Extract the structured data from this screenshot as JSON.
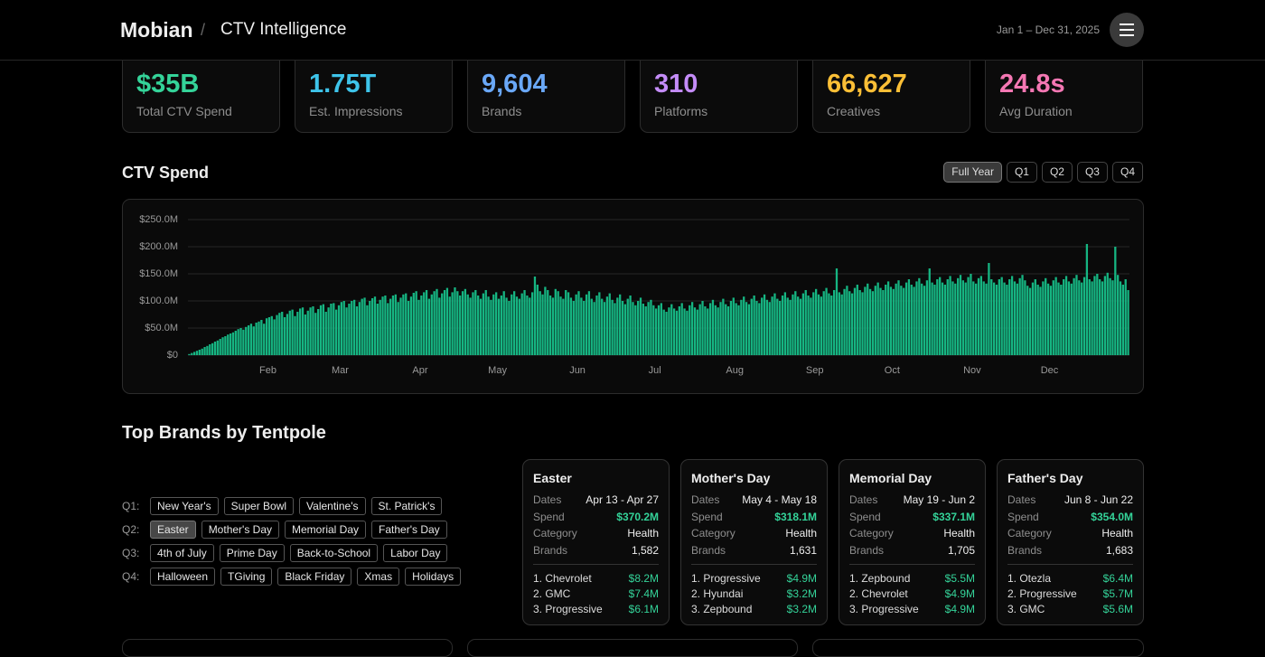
{
  "header": {
    "brand": "Mobian",
    "separator": "/",
    "section": "CTV Intelligence",
    "date_range": "Jan 1 – Dec 31, 2025"
  },
  "kpis": [
    {
      "value": "$35B",
      "label": "Total CTV Spend",
      "color": "#34d399"
    },
    {
      "value": "1.75T",
      "label": "Est. Impressions",
      "color": "#3ec4ea"
    },
    {
      "value": "9,604",
      "label": "Brands",
      "color": "#6aa8f8"
    },
    {
      "value": "310",
      "label": "Platforms",
      "color": "#c48cf8"
    },
    {
      "value": "66,627",
      "label": "Creatives",
      "color": "#fbbf36"
    },
    {
      "value": "24.8s",
      "label": "Avg Duration",
      "color": "#f477b3"
    }
  ],
  "range_buttons": {
    "items": [
      "Full Year",
      "Q1",
      "Q2",
      "Q3",
      "Q4"
    ],
    "active": 0
  },
  "chart_data": {
    "type": "bar",
    "title": "CTV Spend",
    "color": "#16b582",
    "grid": true,
    "ylim": [
      0,
      250
    ],
    "yticks": [
      {
        "value": 0,
        "label": "$0"
      },
      {
        "value": 50,
        "label": "$50.0M"
      },
      {
        "value": 100,
        "label": "$100.0M"
      },
      {
        "value": 150,
        "label": "$150.0M"
      },
      {
        "value": 200,
        "label": "$200.0M"
      },
      {
        "value": 250,
        "label": "$250.0M"
      }
    ],
    "categories": [
      null,
      null,
      null,
      null,
      null,
      null,
      null,
      null,
      null,
      null,
      null,
      null,
      null,
      null,
      null,
      null,
      null,
      null,
      null,
      null,
      null,
      null,
      null,
      null,
      null,
      null,
      null,
      null,
      null,
      null,
      null,
      "Feb",
      null,
      null,
      null,
      null,
      null,
      null,
      null,
      null,
      null,
      null,
      null,
      null,
      null,
      null,
      null,
      null,
      null,
      null,
      null,
      null,
      null,
      null,
      null,
      null,
      null,
      null,
      null,
      "Mar",
      null,
      null,
      null,
      null,
      null,
      null,
      null,
      null,
      null,
      null,
      null,
      null,
      null,
      null,
      null,
      null,
      null,
      null,
      null,
      null,
      null,
      null,
      null,
      null,
      null,
      null,
      null,
      null,
      null,
      null,
      "Apr",
      null,
      null,
      null,
      null,
      null,
      null,
      null,
      null,
      null,
      null,
      null,
      null,
      null,
      null,
      null,
      null,
      null,
      null,
      null,
      null,
      null,
      null,
      null,
      null,
      null,
      null,
      null,
      null,
      null,
      "May",
      null,
      null,
      null,
      null,
      null,
      null,
      null,
      null,
      null,
      null,
      null,
      null,
      null,
      null,
      null,
      null,
      null,
      null,
      null,
      null,
      null,
      null,
      null,
      null,
      null,
      null,
      null,
      null,
      null,
      null,
      "Jun",
      null,
      null,
      null,
      null,
      null,
      null,
      null,
      null,
      null,
      null,
      null,
      null,
      null,
      null,
      null,
      null,
      null,
      null,
      null,
      null,
      null,
      null,
      null,
      null,
      null,
      null,
      null,
      null,
      null,
      "Jul",
      null,
      null,
      null,
      null,
      null,
      null,
      null,
      null,
      null,
      null,
      null,
      null,
      null,
      null,
      null,
      null,
      null,
      null,
      null,
      null,
      null,
      null,
      null,
      null,
      null,
      null,
      null,
      null,
      null,
      null,
      "Aug",
      null,
      null,
      null,
      null,
      null,
      null,
      null,
      null,
      null,
      null,
      null,
      null,
      null,
      null,
      null,
      null,
      null,
      null,
      null,
      null,
      null,
      null,
      null,
      null,
      null,
      null,
      null,
      null,
      null,
      null,
      "Sep",
      null,
      null,
      null,
      null,
      null,
      null,
      null,
      null,
      null,
      null,
      null,
      null,
      null,
      null,
      null,
      null,
      null,
      null,
      null,
      null,
      null,
      null,
      null,
      null,
      null,
      null,
      null,
      null,
      null,
      "Oct",
      null,
      null,
      null,
      null,
      null,
      null,
      null,
      null,
      null,
      null,
      null,
      null,
      null,
      null,
      null,
      null,
      null,
      null,
      null,
      null,
      null,
      null,
      null,
      null,
      null,
      null,
      null,
      null,
      null,
      null,
      "Nov",
      null,
      null,
      null,
      null,
      null,
      null,
      null,
      null,
      null,
      null,
      null,
      null,
      null,
      null,
      null,
      null,
      null,
      null,
      null,
      null,
      null,
      null,
      null,
      null,
      null,
      null,
      null,
      null,
      null,
      "Dec",
      null,
      null,
      null,
      null,
      null,
      null,
      null,
      null,
      null,
      null,
      null,
      null,
      null,
      null,
      null,
      null,
      null,
      null,
      null,
      null,
      null,
      null,
      null,
      null,
      null,
      null,
      null,
      null,
      null,
      null
    ],
    "values": [
      2,
      4,
      6,
      8,
      10,
      12,
      15,
      17,
      20,
      22,
      25,
      27,
      30,
      33,
      35,
      38,
      40,
      42,
      45,
      48,
      50,
      47,
      52,
      55,
      58,
      53,
      60,
      62,
      65,
      58,
      68,
      70,
      72,
      66,
      74,
      78,
      80,
      70,
      76,
      82,
      84,
      72,
      80,
      86,
      88,
      75,
      82,
      88,
      90,
      78,
      85,
      92,
      94,
      80,
      88,
      95,
      96,
      84,
      92,
      98,
      100,
      88,
      95,
      100,
      102,
      90,
      98,
      104,
      106,
      92,
      100,
      105,
      108,
      95,
      102,
      108,
      110,
      96,
      104,
      110,
      112,
      98,
      106,
      112,
      114,
      100,
      108,
      115,
      118,
      102,
      110,
      116,
      120,
      104,
      112,
      118,
      122,
      106,
      114,
      120,
      124,
      108,
      116,
      125,
      118,
      110,
      118,
      122,
      112,
      106,
      116,
      120,
      110,
      104,
      114,
      120,
      108,
      102,
      112,
      116,
      104,
      110,
      118,
      106,
      100,
      112,
      118,
      108,
      104,
      114,
      120,
      110,
      106,
      116,
      145,
      130,
      118,
      112,
      126,
      120,
      110,
      106,
      122,
      118,
      108,
      104,
      120,
      116,
      106,
      100,
      112,
      118,
      106,
      100,
      112,
      118,
      104,
      98,
      110,
      116,
      104,
      98,
      108,
      114,
      102,
      96,
      106,
      112,
      100,
      94,
      104,
      110,
      98,
      92,
      100,
      106,
      95,
      90,
      98,
      102,
      92,
      86,
      92,
      96,
      84,
      80,
      88,
      94,
      86,
      82,
      90,
      96,
      86,
      82,
      92,
      98,
      88,
      84,
      94,
      100,
      90,
      86,
      96,
      102,
      92,
      88,
      98,
      104,
      94,
      90,
      100,
      106,
      96,
      92,
      102,
      108,
      98,
      94,
      104,
      110,
      100,
      96,
      106,
      112,
      102,
      98,
      108,
      114,
      104,
      100,
      110,
      116,
      106,
      102,
      112,
      118,
      108,
      104,
      114,
      120,
      110,
      106,
      116,
      122,
      112,
      108,
      118,
      124,
      114,
      110,
      120,
      160,
      116,
      112,
      122,
      128,
      118,
      114,
      124,
      130,
      120,
      116,
      126,
      132,
      122,
      118,
      128,
      134,
      124,
      120,
      130,
      136,
      126,
      122,
      132,
      138,
      128,
      124,
      134,
      140,
      130,
      126,
      136,
      142,
      132,
      128,
      138,
      160,
      134,
      130,
      140,
      144,
      134,
      130,
      140,
      146,
      136,
      132,
      142,
      148,
      138,
      134,
      144,
      150,
      136,
      132,
      142,
      146,
      136,
      132,
      170,
      140,
      134,
      130,
      140,
      144,
      134,
      130,
      140,
      146,
      136,
      132,
      142,
      148,
      138,
      128,
      124,
      134,
      140,
      130,
      126,
      136,
      142,
      132,
      128,
      138,
      144,
      134,
      130,
      140,
      146,
      136,
      132,
      142,
      148,
      138,
      134,
      144,
      205,
      140,
      136,
      146,
      150,
      140,
      136,
      146,
      152,
      142,
      138,
      200,
      148,
      136,
      130,
      140,
      120
    ]
  },
  "tentpole": {
    "title": "Top Brands by Tentpole",
    "active_quarter": 1,
    "active_item": 0,
    "quarters": [
      {
        "label": "Q1:",
        "items": [
          "New Year's",
          "Super Bowl",
          "Valentine's",
          "St. Patrick's"
        ]
      },
      {
        "label": "Q2:",
        "items": [
          "Easter",
          "Mother's Day",
          "Memorial Day",
          "Father's Day"
        ]
      },
      {
        "label": "Q3:",
        "items": [
          "4th of July",
          "Prime Day",
          "Back-to-School",
          "Labor Day"
        ]
      },
      {
        "label": "Q4:",
        "items": [
          "Halloween",
          "TGiving",
          "Black Friday",
          "Xmas",
          "Holidays"
        ]
      }
    ]
  },
  "card_fields": [
    "Dates",
    "Spend",
    "Category",
    "Brands"
  ],
  "cards": [
    {
      "title": "Easter",
      "values": [
        "Apr 13 - Apr 27",
        "$370.2M",
        "Health",
        "1,582"
      ],
      "top": [
        [
          "1. Chevrolet",
          "$8.2M"
        ],
        [
          "2. GMC",
          "$7.4M"
        ],
        [
          "3. Progressive",
          "$6.1M"
        ]
      ]
    },
    {
      "title": "Mother's Day",
      "values": [
        "May 4 - May 18",
        "$318.1M",
        "Health",
        "1,631"
      ],
      "top": [
        [
          "1. Progressive",
          "$4.9M"
        ],
        [
          "2. Hyundai",
          "$3.2M"
        ],
        [
          "3. Zepbound",
          "$3.2M"
        ]
      ]
    },
    {
      "title": "Memorial Day",
      "values": [
        "May 19 - Jun 2",
        "$337.1M",
        "Health",
        "1,705"
      ],
      "top": [
        [
          "1. Zepbound",
          "$5.5M"
        ],
        [
          "2. Chevrolet",
          "$4.9M"
        ],
        [
          "3. Progressive",
          "$4.9M"
        ]
      ]
    },
    {
      "title": "Father's Day",
      "values": [
        "Jun 8 - Jun 22",
        "$354.0M",
        "Health",
        "1,683"
      ],
      "top": [
        [
          "1. Otezla",
          "$6.4M"
        ],
        [
          "2. Progressive",
          "$5.7M"
        ],
        [
          "3. GMC",
          "$5.6M"
        ]
      ]
    }
  ]
}
